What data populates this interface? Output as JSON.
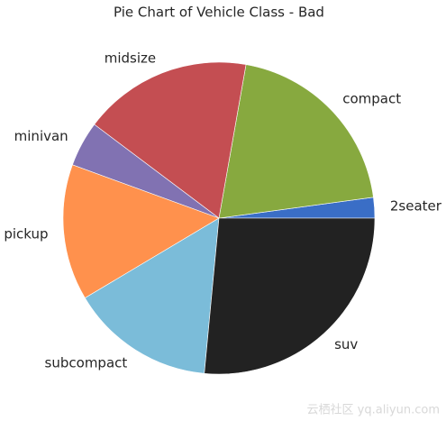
{
  "chart_data": {
    "type": "pie",
    "title": "Pie Chart of Vehicle Class - Bad",
    "categories": [
      "2seater",
      "compact",
      "midsize",
      "minivan",
      "pickup",
      "subcompact",
      "suv"
    ],
    "values": [
      5,
      47,
      41,
      11,
      33,
      35,
      62
    ],
    "colors": [
      "#3a6ec6",
      "#87a93f",
      "#c44e52",
      "#8172b2",
      "#ff914d",
      "#7bbcd9",
      "#222222"
    ],
    "start_angle": 0,
    "watermark": "云栖社区 yq.aliyun.com"
  }
}
